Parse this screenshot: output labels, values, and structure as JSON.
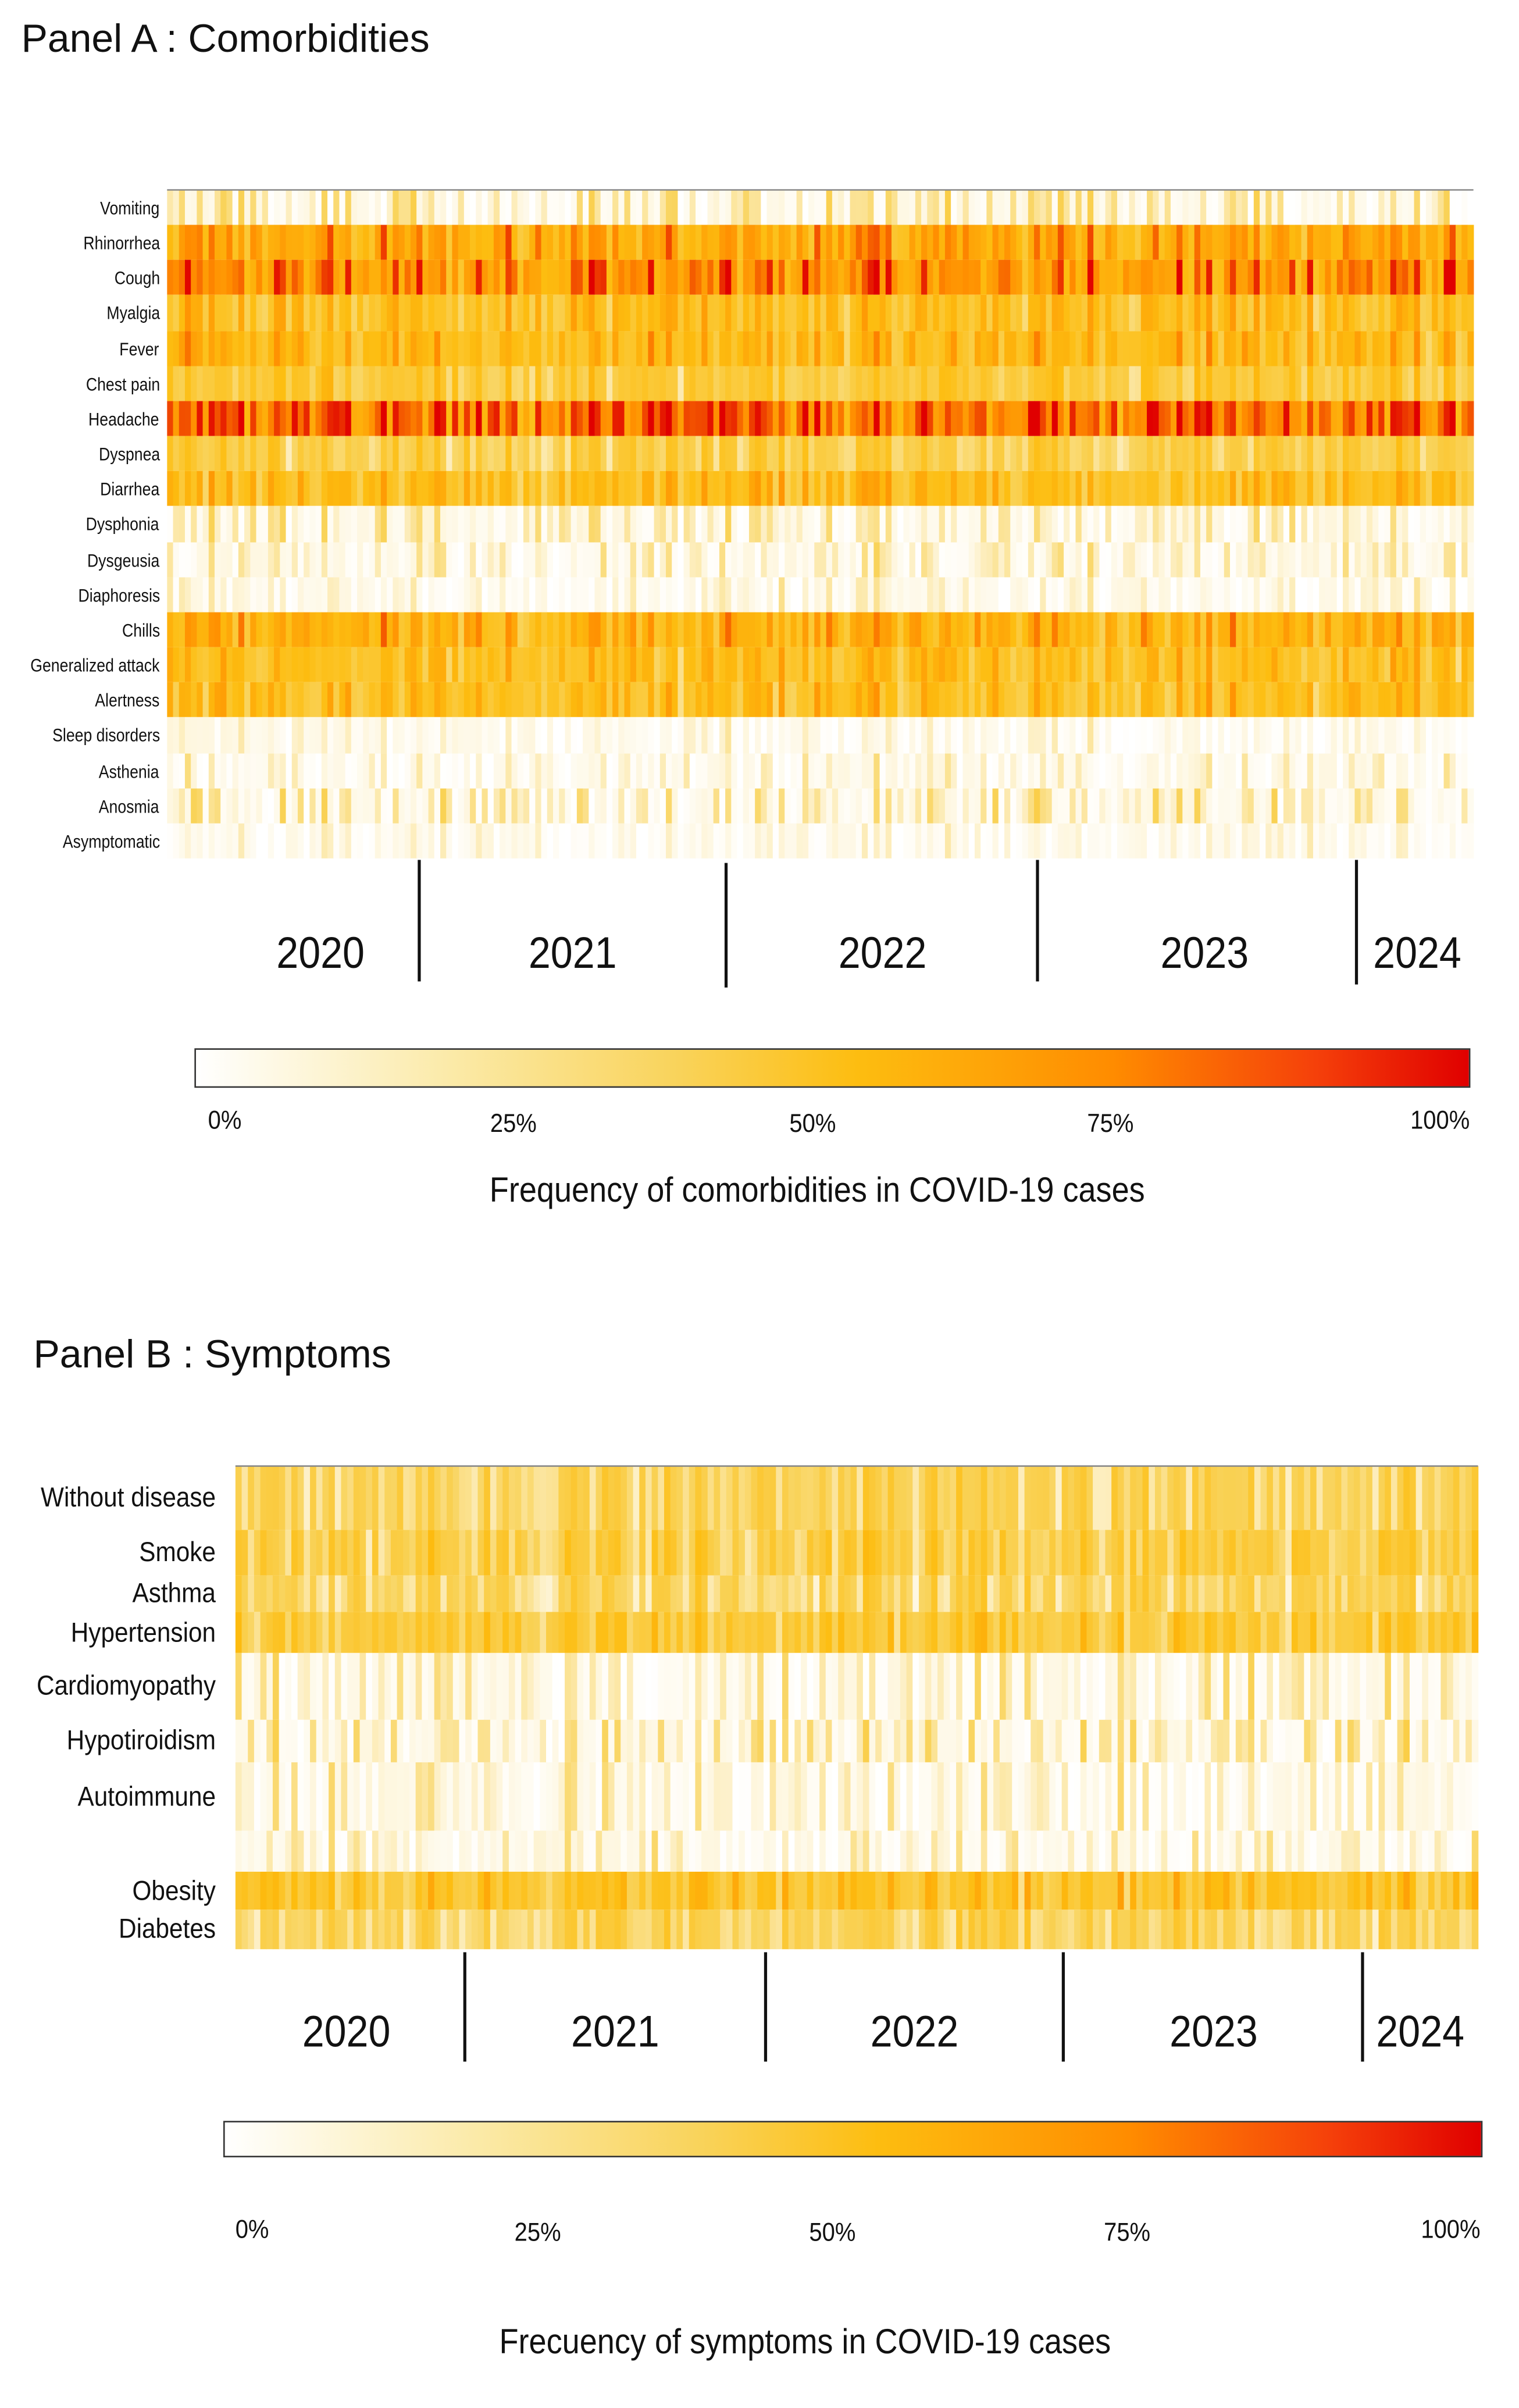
{
  "chart_data": [
    {
      "type": "heatmap",
      "title": "Panel A : Comorbidities",
      "rows": [
        "Vomiting",
        "Rhinorrhea",
        "Cough",
        "Myalgia",
        "Fever",
        "Chest pain",
        "Headache",
        "Dyspnea",
        "Diarrhea",
        "Dysphonia",
        "Dysgeusia",
        "Diaphoresis",
        "Chills",
        "Generalized attack",
        "Alertness",
        "Sleep disorders",
        "Asthenia",
        "Anosmia",
        "Asymptomatic"
      ],
      "row_mean_frequency_pct": [
        15,
        60,
        70,
        45,
        50,
        35,
        80,
        30,
        45,
        12,
        10,
        5,
        55,
        45,
        45,
        3,
        6,
        15,
        3
      ],
      "x_categories": [
        "2020",
        "2021",
        "2022",
        "2023",
        "2024"
      ],
      "colorbar": {
        "ticks": [
          "0%",
          "25%",
          "50%",
          "75%",
          "100%"
        ],
        "range": [
          0,
          100
        ],
        "colors": [
          "#ffffff",
          "#f9d35a",
          "#fdbd10",
          "#ff8c00",
          "#e00000"
        ]
      },
      "caption": "Frequency of comorbidities in COVID-19 cases"
    },
    {
      "type": "heatmap",
      "title": "Panel B : Symptoms",
      "rows": [
        "Without disease",
        "Smoke",
        "Asthma",
        "Hypertension",
        "Cardiomyopathy",
        "Hypotiroidism",
        "Autoimmune",
        "",
        "Obesity",
        "Diabetes"
      ],
      "row_mean_frequency_pct": [
        25,
        30,
        25,
        35,
        12,
        15,
        8,
        10,
        40,
        25
      ],
      "x_categories": [
        "2020",
        "2021",
        "2022",
        "2023",
        "2024"
      ],
      "colorbar": {
        "ticks": [
          "0%",
          "25%",
          "50%",
          "75%",
          "100%"
        ],
        "range": [
          0,
          100
        ],
        "colors": [
          "#ffffff",
          "#f9d35a",
          "#fdbd10",
          "#ff8c00",
          "#e00000"
        ]
      },
      "caption": "Frecuency of symptoms in COVID-19 cases"
    }
  ]
}
